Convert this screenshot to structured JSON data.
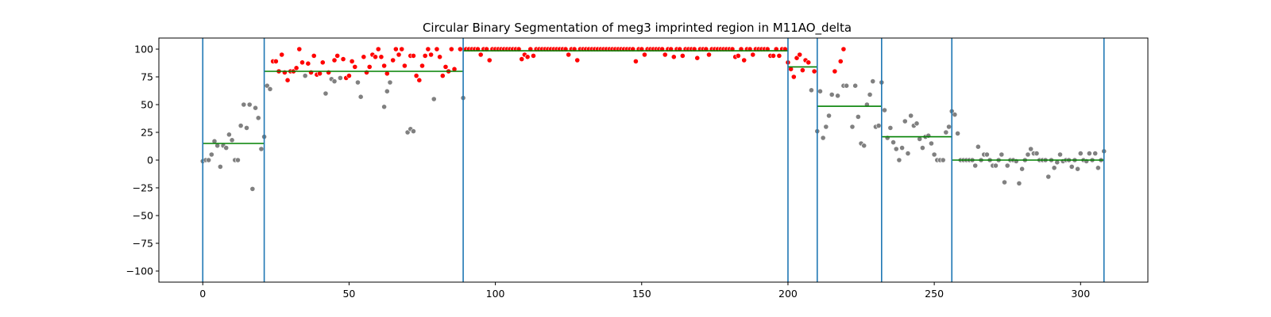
{
  "chart_data": {
    "type": "scatter",
    "title": "Circular Binary Segmentation of meg3 imprinted region in M11AO_delta",
    "xlabel": "",
    "ylabel": "",
    "xlim": [
      -15,
      323
    ],
    "ylim": [
      -110,
      110
    ],
    "xticks": [
      0,
      50,
      100,
      150,
      200,
      250,
      300
    ],
    "yticks": [
      -100,
      -75,
      -50,
      -25,
      0,
      25,
      50,
      75,
      100
    ],
    "grid": false,
    "colors": {
      "high_point": "#ff0000",
      "other_point": "#808080",
      "breakpoint_line": "#1f77b4",
      "segment_mean": "#008000"
    },
    "breakpoints": [
      0,
      21,
      89,
      200,
      210,
      232,
      256,
      308
    ],
    "segments": [
      {
        "start": 0,
        "end": 21,
        "mean": 15
      },
      {
        "start": 21,
        "end": 89,
        "mean": 80
      },
      {
        "start": 89,
        "end": 200,
        "mean": 98.5
      },
      {
        "start": 200,
        "end": 210,
        "mean": 84
      },
      {
        "start": 210,
        "end": 232,
        "mean": 48.5
      },
      {
        "start": 232,
        "end": 256,
        "mean": 21
      },
      {
        "start": 256,
        "end": 308,
        "mean": 0
      }
    ],
    "series": [
      {
        "values": [
          [
            0,
            -1
          ],
          [
            1,
            0
          ],
          [
            2,
            0
          ],
          [
            3,
            5
          ],
          [
            4,
            17
          ],
          [
            5,
            13
          ],
          [
            6,
            -6
          ],
          [
            7,
            13
          ],
          [
            8,
            11
          ],
          [
            9,
            23
          ],
          [
            10,
            18
          ],
          [
            11,
            0
          ],
          [
            12,
            0
          ],
          [
            13,
            31
          ],
          [
            14,
            50
          ],
          [
            15,
            29
          ],
          [
            16,
            50
          ],
          [
            17,
            -26
          ],
          [
            18,
            47
          ],
          [
            19,
            38
          ],
          [
            20,
            10
          ],
          [
            21,
            21
          ],
          [
            22,
            67
          ],
          [
            23,
            64
          ],
          [
            35,
            76
          ],
          [
            42,
            60
          ],
          [
            44,
            73
          ],
          [
            45,
            71
          ],
          [
            47,
            74
          ],
          [
            53,
            70
          ],
          [
            54,
            57
          ],
          [
            62,
            48
          ],
          [
            63,
            62
          ],
          [
            64,
            70
          ],
          [
            70,
            25
          ],
          [
            71,
            28
          ],
          [
            72,
            26
          ],
          [
            79,
            55
          ],
          [
            89,
            56
          ],
          [
            208,
            63
          ],
          [
            210,
            26
          ],
          [
            211,
            62
          ],
          [
            212,
            20
          ],
          [
            213,
            30
          ],
          [
            214,
            40
          ],
          [
            215,
            59
          ],
          [
            217,
            58
          ],
          [
            219,
            67
          ],
          [
            220,
            67
          ],
          [
            222,
            30
          ],
          [
            223,
            67
          ],
          [
            224,
            39
          ],
          [
            225,
            15
          ],
          [
            226,
            13
          ],
          [
            227,
            50
          ],
          [
            228,
            59
          ],
          [
            229,
            71
          ],
          [
            230,
            30
          ],
          [
            231,
            31
          ],
          [
            232,
            70
          ],
          [
            233,
            45
          ],
          [
            234,
            20
          ],
          [
            235,
            29
          ],
          [
            236,
            16
          ],
          [
            237,
            10
          ],
          [
            238,
            0
          ],
          [
            239,
            11
          ],
          [
            240,
            35
          ],
          [
            241,
            6
          ],
          [
            242,
            40
          ],
          [
            243,
            31
          ],
          [
            244,
            33
          ],
          [
            245,
            19
          ],
          [
            246,
            11
          ],
          [
            247,
            21
          ],
          [
            248,
            22
          ],
          [
            249,
            15
          ],
          [
            250,
            5
          ],
          [
            251,
            0
          ],
          [
            252,
            0
          ],
          [
            253,
            0
          ],
          [
            254,
            25
          ],
          [
            255,
            30
          ],
          [
            256,
            44
          ],
          [
            257,
            41
          ],
          [
            258,
            24
          ],
          [
            259,
            0
          ],
          [
            260,
            0
          ],
          [
            261,
            0
          ],
          [
            262,
            0
          ],
          [
            263,
            0
          ],
          [
            264,
            -5
          ],
          [
            265,
            12
          ],
          [
            266,
            0
          ],
          [
            267,
            5
          ],
          [
            268,
            5
          ],
          [
            269,
            0
          ],
          [
            270,
            -5
          ],
          [
            271,
            -5
          ],
          [
            272,
            0
          ],
          [
            273,
            5
          ],
          [
            274,
            -20
          ],
          [
            275,
            -5
          ],
          [
            276,
            0
          ],
          [
            277,
            0
          ],
          [
            278,
            -1
          ],
          [
            279,
            -21
          ],
          [
            280,
            -8
          ],
          [
            281,
            0
          ],
          [
            282,
            5
          ],
          [
            283,
            10
          ],
          [
            284,
            6
          ],
          [
            285,
            6
          ],
          [
            286,
            0
          ],
          [
            287,
            0
          ],
          [
            288,
            0
          ],
          [
            289,
            -15
          ],
          [
            290,
            0
          ],
          [
            291,
            -7
          ],
          [
            292,
            -2
          ],
          [
            293,
            5
          ],
          [
            294,
            -1
          ],
          [
            295,
            0
          ],
          [
            296,
            0
          ],
          [
            297,
            -6
          ],
          [
            298,
            0
          ],
          [
            299,
            -8
          ],
          [
            300,
            6
          ],
          [
            301,
            0
          ],
          [
            302,
            -1
          ],
          [
            303,
            6
          ],
          [
            304,
            0
          ],
          [
            305,
            6
          ],
          [
            306,
            -7
          ],
          [
            307,
            0
          ],
          [
            308,
            8
          ]
        ]
      },
      {
        "values": [
          [
            24,
            89
          ],
          [
            25,
            89
          ],
          [
            26,
            80
          ],
          [
            27,
            95
          ],
          [
            28,
            79
          ],
          [
            29,
            72
          ],
          [
            30,
            80
          ],
          [
            31,
            80
          ],
          [
            32,
            83
          ],
          [
            33,
            100
          ],
          [
            34,
            88
          ],
          [
            36,
            87
          ],
          [
            37,
            79
          ],
          [
            38,
            94
          ],
          [
            39,
            77
          ],
          [
            40,
            78
          ],
          [
            41,
            88
          ],
          [
            43,
            79
          ],
          [
            45,
            90
          ],
          [
            46,
            94
          ],
          [
            48,
            91
          ],
          [
            49,
            74
          ],
          [
            50,
            76
          ],
          [
            51,
            89
          ],
          [
            52,
            84
          ],
          [
            55,
            93
          ],
          [
            56,
            79
          ],
          [
            57,
            84
          ],
          [
            58,
            95
          ],
          [
            59,
            93
          ],
          [
            60,
            100
          ],
          [
            61,
            93
          ],
          [
            62,
            85
          ],
          [
            63,
            78
          ],
          [
            65,
            90
          ],
          [
            66,
            100
          ],
          [
            67,
            95
          ],
          [
            68,
            100
          ],
          [
            69,
            85
          ],
          [
            71,
            94
          ],
          [
            72,
            94
          ],
          [
            73,
            76
          ],
          [
            74,
            72
          ],
          [
            75,
            85
          ],
          [
            76,
            94
          ],
          [
            77,
            100
          ],
          [
            78,
            95
          ],
          [
            80,
            100
          ],
          [
            81,
            93
          ],
          [
            82,
            76
          ],
          [
            83,
            84
          ],
          [
            84,
            80
          ],
          [
            85,
            100
          ],
          [
            86,
            82
          ],
          [
            88,
            100
          ],
          [
            90,
            100
          ],
          [
            91,
            100
          ],
          [
            92,
            100
          ],
          [
            93,
            100
          ],
          [
            94,
            100
          ],
          [
            95,
            95
          ],
          [
            96,
            100
          ],
          [
            97,
            100
          ],
          [
            98,
            90
          ],
          [
            99,
            100
          ],
          [
            100,
            100
          ],
          [
            101,
            100
          ],
          [
            102,
            100
          ],
          [
            103,
            100
          ],
          [
            104,
            100
          ],
          [
            105,
            100
          ],
          [
            106,
            100
          ],
          [
            107,
            100
          ],
          [
            108,
            100
          ],
          [
            109,
            91
          ],
          [
            110,
            95
          ],
          [
            111,
            93
          ],
          [
            112,
            100
          ],
          [
            113,
            94
          ],
          [
            114,
            100
          ],
          [
            115,
            100
          ],
          [
            116,
            100
          ],
          [
            117,
            100
          ],
          [
            118,
            100
          ],
          [
            119,
            100
          ],
          [
            120,
            100
          ],
          [
            121,
            100
          ],
          [
            122,
            100
          ],
          [
            123,
            100
          ],
          [
            124,
            100
          ],
          [
            125,
            95
          ],
          [
            126,
            100
          ],
          [
            127,
            100
          ],
          [
            128,
            90
          ],
          [
            129,
            100
          ],
          [
            130,
            100
          ],
          [
            131,
            100
          ],
          [
            132,
            100
          ],
          [
            133,
            100
          ],
          [
            134,
            100
          ],
          [
            135,
            100
          ],
          [
            136,
            100
          ],
          [
            137,
            100
          ],
          [
            138,
            100
          ],
          [
            139,
            100
          ],
          [
            140,
            100
          ],
          [
            141,
            100
          ],
          [
            142,
            100
          ],
          [
            143,
            100
          ],
          [
            144,
            100
          ],
          [
            145,
            100
          ],
          [
            146,
            100
          ],
          [
            147,
            100
          ],
          [
            148,
            89
          ],
          [
            149,
            100
          ],
          [
            150,
            100
          ],
          [
            151,
            95
          ],
          [
            152,
            100
          ],
          [
            153,
            100
          ],
          [
            154,
            100
          ],
          [
            155,
            100
          ],
          [
            156,
            100
          ],
          [
            157,
            100
          ],
          [
            158,
            95
          ],
          [
            159,
            100
          ],
          [
            160,
            100
          ],
          [
            161,
            93
          ],
          [
            162,
            100
          ],
          [
            163,
            100
          ],
          [
            164,
            94
          ],
          [
            165,
            100
          ],
          [
            166,
            100
          ],
          [
            167,
            100
          ],
          [
            168,
            100
          ],
          [
            169,
            92
          ],
          [
            170,
            100
          ],
          [
            171,
            100
          ],
          [
            172,
            100
          ],
          [
            173,
            95
          ],
          [
            174,
            100
          ],
          [
            175,
            100
          ],
          [
            176,
            100
          ],
          [
            177,
            100
          ],
          [
            178,
            100
          ],
          [
            179,
            100
          ],
          [
            180,
            100
          ],
          [
            181,
            100
          ],
          [
            182,
            93
          ],
          [
            183,
            94
          ],
          [
            184,
            100
          ],
          [
            185,
            90
          ],
          [
            186,
            100
          ],
          [
            187,
            100
          ],
          [
            188,
            95
          ],
          [
            189,
            100
          ],
          [
            190,
            100
          ],
          [
            191,
            100
          ],
          [
            192,
            100
          ],
          [
            193,
            100
          ],
          [
            194,
            94
          ],
          [
            195,
            94
          ],
          [
            196,
            100
          ],
          [
            197,
            94
          ],
          [
            198,
            100
          ],
          [
            199,
            100
          ],
          [
            200,
            88
          ],
          [
            201,
            82
          ],
          [
            202,
            75
          ],
          [
            203,
            92
          ],
          [
            204,
            95
          ],
          [
            205,
            81
          ],
          [
            206,
            90
          ],
          [
            207,
            88
          ],
          [
            209,
            80
          ],
          [
            216,
            80
          ],
          [
            218,
            89
          ],
          [
            219,
            100
          ]
        ]
      }
    ]
  }
}
